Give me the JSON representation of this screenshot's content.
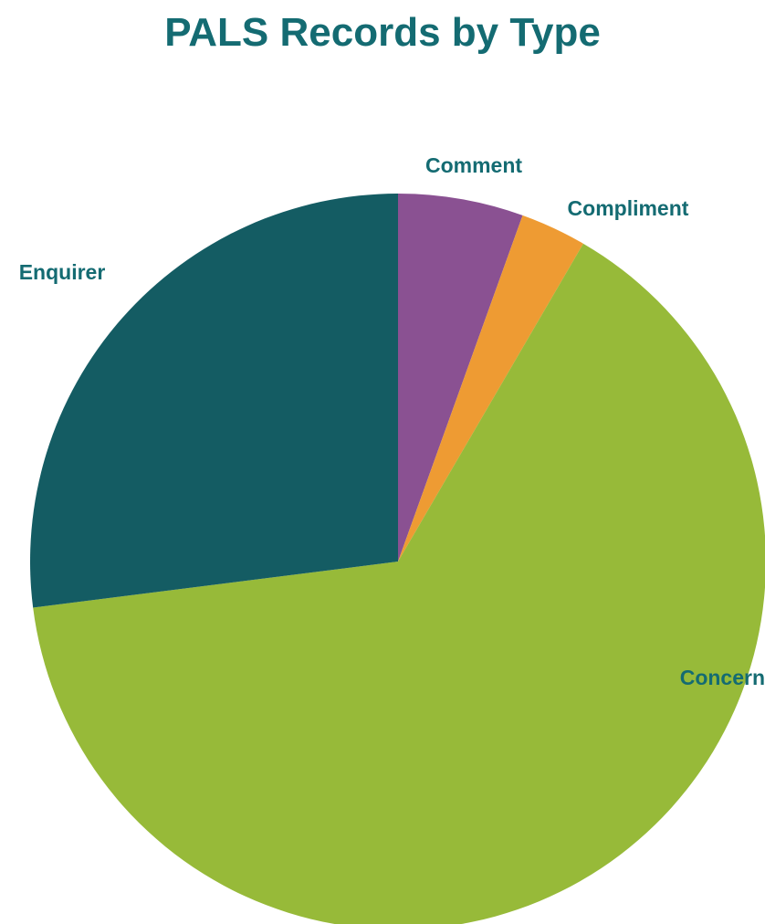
{
  "chart_data": {
    "type": "pie",
    "title": "PALS Records by Type",
    "title_color": "#146B72",
    "label_color": "#146B72",
    "slices": [
      {
        "label": "Comment",
        "value": 5.5,
        "color": "#8A5192"
      },
      {
        "label": "Compliment",
        "value": 2.9,
        "color": "#EE9B33"
      },
      {
        "label": "Concern",
        "value": 64.6,
        "color": "#97BA39"
      },
      {
        "label": "Enquirer",
        "value": 27.0,
        "color": "#145C63"
      }
    ],
    "start_angle_deg": 0,
    "direction": "clockwise"
  }
}
